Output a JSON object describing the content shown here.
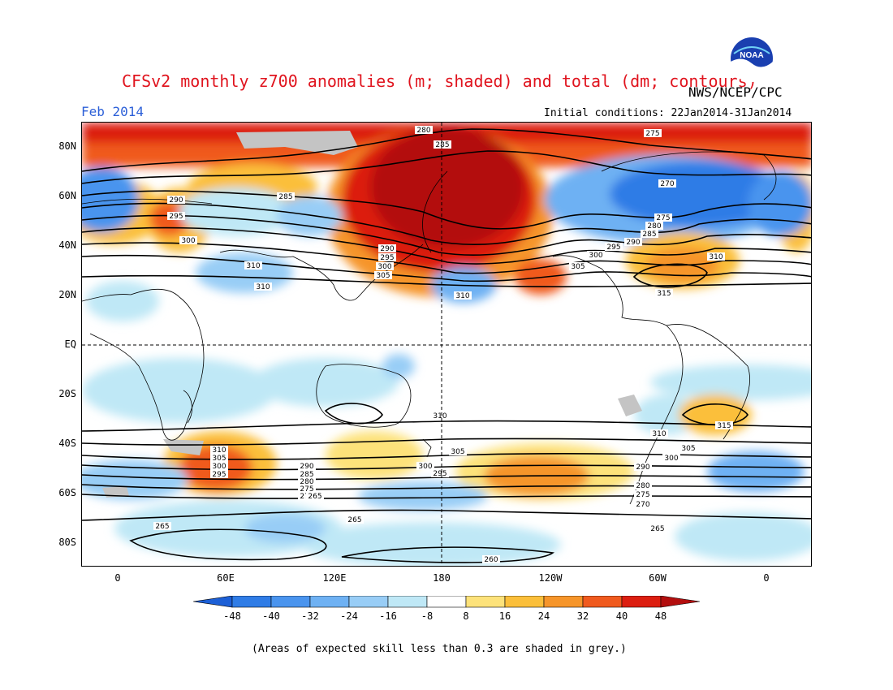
{
  "header": {
    "title": "CFSv2 monthly z700 anomalies (m; shaded) and total (dm; contours)",
    "agency": "NWS/NCEP/CPC",
    "month": "Feb 2014",
    "initial_conditions": "Initial conditions: 22Jan2014-31Jan2014",
    "logo_text": "NOAA"
  },
  "axes": {
    "lat_labels": [
      "80N",
      "60N",
      "40N",
      "20N",
      "EQ",
      "20S",
      "40S",
      "60S",
      "80S"
    ],
    "lon_labels": [
      "0",
      "60E",
      "120E",
      "180",
      "120W",
      "60W",
      "0"
    ]
  },
  "colorbar": {
    "ticks": [
      "-48",
      "-40",
      "-32",
      "-24",
      "-16",
      "-8",
      "8",
      "16",
      "24",
      "32",
      "40",
      "48"
    ],
    "colors": [
      "#1c5fd6",
      "#2f7ce6",
      "#4a94ee",
      "#6eb1f3",
      "#98cdf6",
      "#bfe8f6",
      "#ffffff",
      "#fde27a",
      "#fbbf3a",
      "#f6952a",
      "#f05a1e",
      "#dc1e10",
      "#b30e0e"
    ]
  },
  "contour_labels": [
    "280",
    "285",
    "275",
    "270",
    "275",
    "280",
    "285",
    "290",
    "295",
    "300",
    "305",
    "310",
    "290",
    "295",
    "300",
    "285",
    "290",
    "295",
    "300",
    "305",
    "310",
    "310",
    "315",
    "310",
    "305",
    "300",
    "295",
    "290",
    "285",
    "280",
    "275",
    "270",
    "265",
    "260",
    "310",
    "305",
    "300",
    "295",
    "290",
    "280",
    "275",
    "270",
    "265",
    "310",
    "305",
    "300",
    "315",
    "265",
    "260",
    "265"
  ],
  "footnote": "(Areas of expected skill less than 0.3 are shaded in grey.)"
}
